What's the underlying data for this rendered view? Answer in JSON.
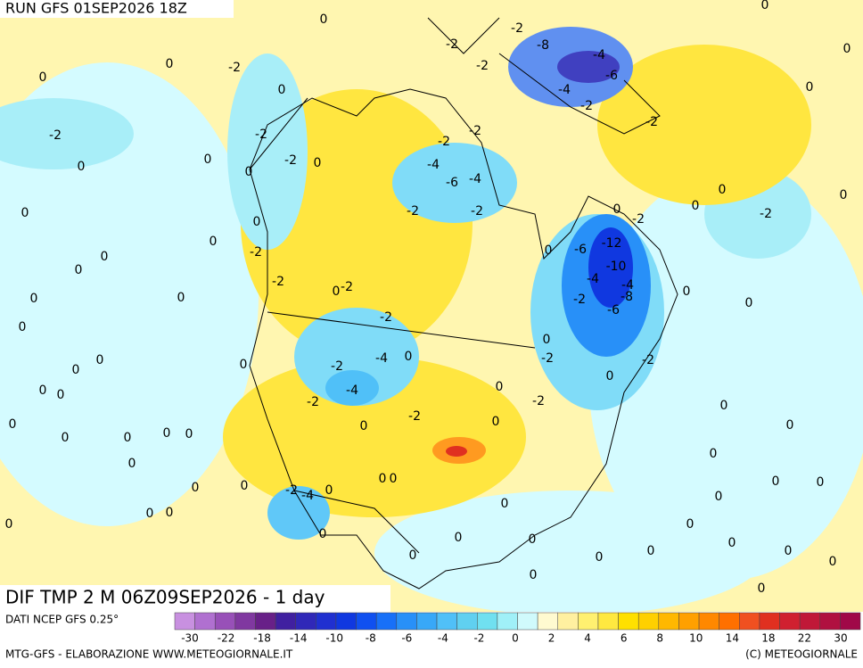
{
  "header": {
    "run": "RUN GFS 01SEP2026 18Z"
  },
  "map": {
    "title": "DIF TMP 2 M 06Z09SEP2026 - 1 day",
    "contour_labels": [
      0,
      0,
      -2,
      0,
      0,
      -2,
      -2,
      0,
      0,
      0,
      -2,
      0,
      0,
      0,
      0,
      -2,
      0,
      0,
      0,
      0,
      -2,
      0,
      -2,
      0,
      -2,
      0,
      0,
      0,
      -2,
      -4,
      0,
      0,
      0,
      -4,
      -2,
      0,
      -2,
      0,
      0,
      0,
      0,
      0,
      0,
      0,
      0,
      0,
      0,
      -2,
      -4,
      0,
      0,
      0,
      0,
      0,
      0,
      0,
      0,
      0,
      0,
      0,
      0,
      -2,
      -2,
      -2,
      -8,
      -4,
      -6,
      -4,
      -2,
      -2,
      -2,
      -2,
      -4,
      -6,
      -4,
      -2,
      -2,
      0,
      -2,
      -12,
      -6,
      0,
      -10,
      -4,
      -4,
      -8,
      -2,
      -6,
      0,
      -2,
      -2,
      -2,
      0,
      0,
      0,
      0,
      -2,
      0,
      0,
      0,
      0,
      0,
      0,
      0,
      0,
      0,
      0,
      0,
      0,
      0,
      0,
      0,
      0,
      0,
      0
    ]
  },
  "legend": {
    "source": "DATI NCEP GFS 0.25°",
    "colors": [
      "#c890e0",
      "#b070d0",
      "#9850b8",
      "#8038a0",
      "#682088",
      "#4020a0",
      "#3028b8",
      "#2030d0",
      "#1038e0",
      "#1050f0",
      "#1870f8",
      "#2890f8",
      "#38a8f8",
      "#50c0f8",
      "#60d0f0",
      "#70e0f0",
      "#a0f0f8",
      "#d0fafc",
      "#fffad0",
      "#fff0a0",
      "#fff070",
      "#ffe840",
      "#ffe000",
      "#ffd000",
      "#ffb800",
      "#ffa000",
      "#ff8800",
      "#ff7000",
      "#f05020",
      "#e03020",
      "#d02030",
      "#c01838",
      "#b01040",
      "#a00848"
    ],
    "ticks": [
      -30,
      -22,
      -18,
      -14,
      -10,
      -8,
      -6,
      -4,
      -2,
      0,
      2,
      4,
      6,
      8,
      10,
      14,
      18,
      22,
      30
    ]
  },
  "footer": {
    "credit": "MTG-GFS - ELABORAZIONE WWW.METEOGIORNALE.IT",
    "copyright": "(C) METEOGIORNALE"
  }
}
